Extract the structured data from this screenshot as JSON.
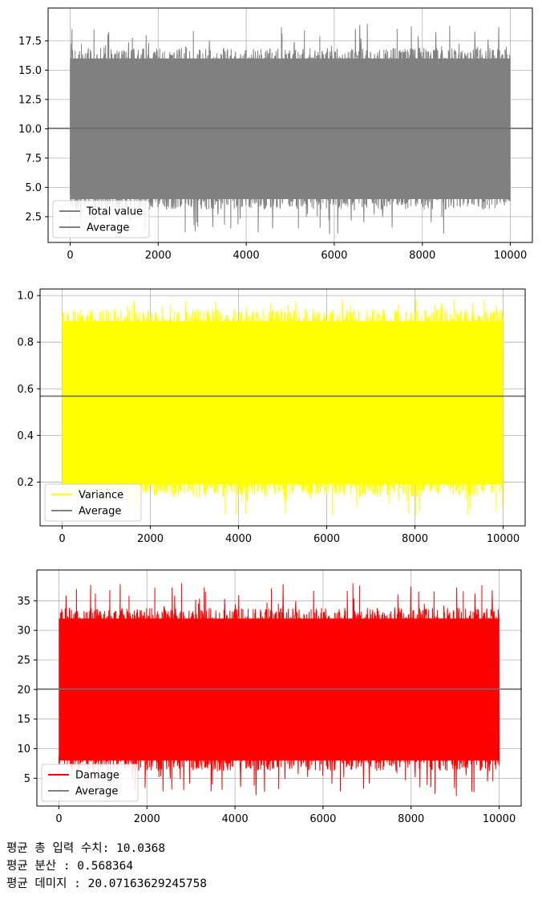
{
  "chart_data": [
    {
      "type": "line",
      "x": [
        0,
        10000
      ],
      "xlim": [
        -500,
        10500
      ],
      "ylim": [
        0.3,
        20.3
      ],
      "xticks": [
        "0",
        "2000",
        "4000",
        "6000",
        "8000",
        "10000"
      ],
      "yticks": [
        "2.5",
        "5.0",
        "7.5",
        "10.0",
        "12.5",
        "15.0",
        "17.5"
      ],
      "grid": true,
      "legend": "lower-left",
      "series": [
        {
          "name": "Total value",
          "color": "#808080",
          "typical_range": [
            4,
            16
          ],
          "min": 1,
          "max": 19,
          "style": "noisy-line"
        },
        {
          "name": "Average",
          "color": "#808080",
          "value": 10.0368,
          "style": "horizontal-line"
        }
      ]
    },
    {
      "type": "line",
      "x": [
        0,
        10000
      ],
      "xlim": [
        -500,
        10500
      ],
      "ylim": [
        0.012,
        1.028
      ],
      "xticks": [
        "0",
        "2000",
        "4000",
        "6000",
        "8000",
        "10000"
      ],
      "yticks": [
        "0.2",
        "0.4",
        "0.6",
        "0.8",
        "1.0"
      ],
      "grid": true,
      "legend": "lower-left",
      "series": [
        {
          "name": "Variance",
          "color": "#ffff00",
          "typical_range": [
            0.19,
            0.89
          ],
          "min": 0.05,
          "max": 0.99,
          "style": "noisy-line"
        },
        {
          "name": "Average",
          "color": "#808080",
          "value": 0.568364,
          "style": "horizontal-line"
        }
      ]
    },
    {
      "type": "line",
      "x": [
        0,
        10000
      ],
      "xlim": [
        -500,
        10500
      ],
      "ylim": [
        0.3,
        40.2
      ],
      "xticks": [
        "0",
        "2000",
        "4000",
        "6000",
        "8000",
        "10000"
      ],
      "yticks": [
        "5",
        "10",
        "15",
        "20",
        "25",
        "30",
        "35"
      ],
      "grid": true,
      "legend": "lower-left",
      "series": [
        {
          "name": "Damage",
          "color": "#ff0000",
          "typical_range": [
            8,
            32
          ],
          "min": 2,
          "max": 38,
          "style": "noisy-line"
        },
        {
          "name": "Average",
          "color": "#808080",
          "value": 20.07163629245758,
          "style": "horizontal-line"
        }
      ]
    }
  ],
  "output": {
    "line1": "평균 총 입력 수치: 10.0368",
    "line2": "평균 분산 : 0.568364",
    "line3": "평균 데미지 : 20.07163629245758"
  }
}
